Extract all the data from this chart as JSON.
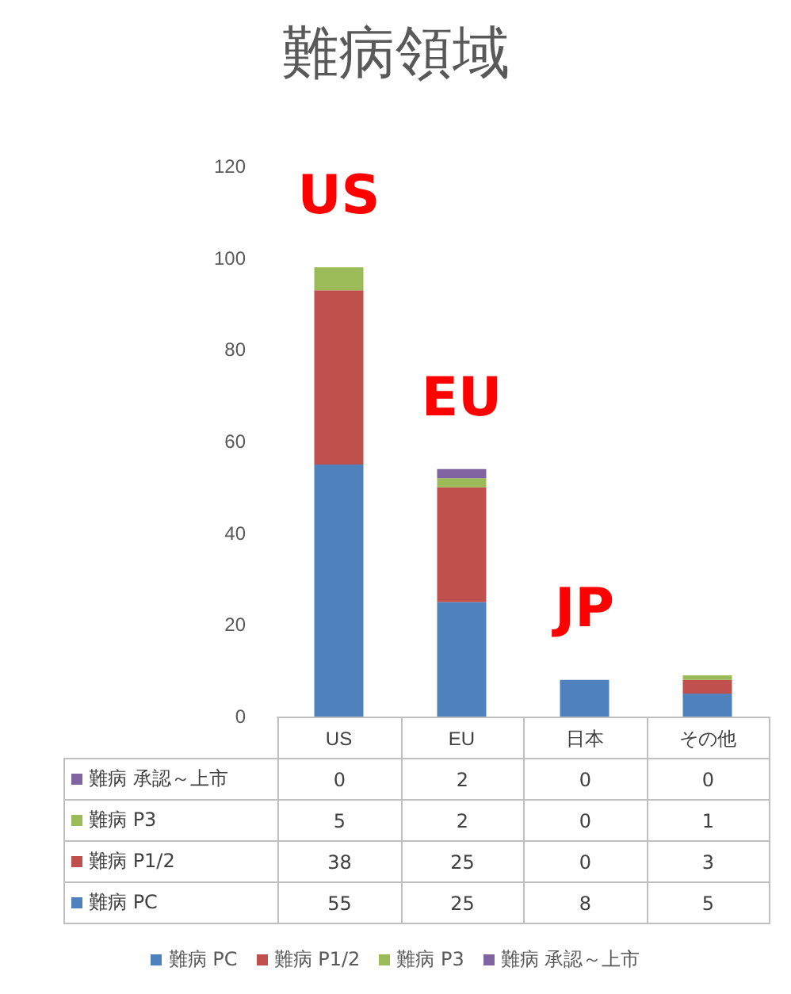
{
  "chart_data": {
    "type": "bar",
    "title": "難病領域",
    "stacked": true,
    "categories": [
      "US",
      "EU",
      "日本",
      "その他"
    ],
    "series": [
      {
        "name": "難病 PC",
        "color": "#4f81bd",
        "values": [
          55,
          25,
          8,
          5
        ]
      },
      {
        "name": "難病 P1/2",
        "color": "#c0504d",
        "values": [
          38,
          25,
          0,
          3
        ]
      },
      {
        "name": "難病 P3",
        "color": "#9bbb59",
        "values": [
          5,
          2,
          0,
          1
        ]
      },
      {
        "name": "難病 承認～上市",
        "color": "#8064a2",
        "values": [
          0,
          2,
          0,
          0
        ]
      }
    ],
    "ylim": [
      0,
      120
    ],
    "yticks": [
      0,
      20,
      40,
      60,
      80,
      100,
      120
    ],
    "grid": false,
    "legend": "bottom",
    "data_labels": true,
    "annotations": [
      "US",
      "EU",
      "JP"
    ]
  }
}
